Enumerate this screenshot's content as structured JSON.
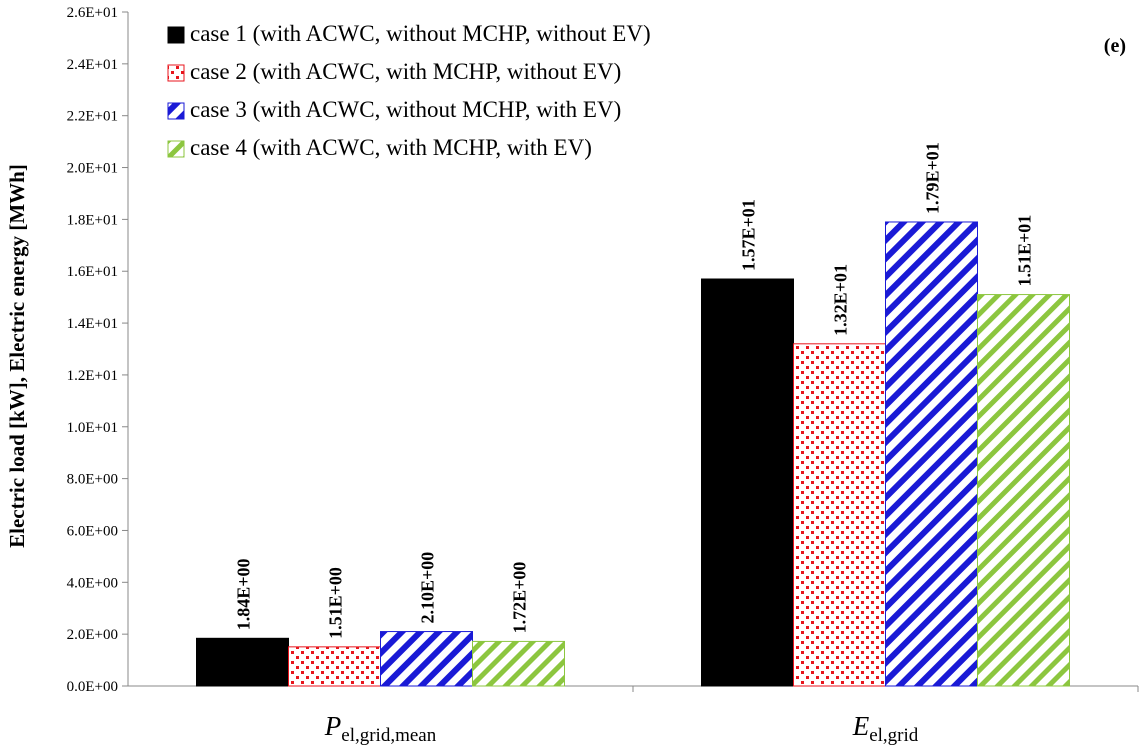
{
  "chart_data": {
    "type": "bar",
    "panel_label": "(e)",
    "ylabel": "Electric load [kW], Electric energy [MWh]",
    "ylim": [
      0,
      26
    ],
    "y_ticks": [
      0,
      2,
      4,
      6,
      8,
      10,
      12,
      14,
      16,
      18,
      20,
      22,
      24,
      26
    ],
    "y_tick_labels": [
      "0.0E+00",
      "2.0E+00",
      "4.0E+00",
      "6.0E+00",
      "8.0E+00",
      "1.0E+01",
      "1.2E+01",
      "1.4E+01",
      "1.6E+01",
      "1.8E+01",
      "2.0E+01",
      "2.2E+01",
      "2.4E+01",
      "2.6E+01"
    ],
    "grid": false,
    "legend_position": "top-left",
    "categories": [
      {
        "main": "P",
        "sub": "el,grid,mean"
      },
      {
        "main": "E",
        "sub": "el,grid"
      }
    ],
    "series": [
      {
        "name": "case 1 (with ACWC, without MCHP, without EV)",
        "values": [
          1.84,
          15.7
        ],
        "labels": [
          "1.84E+00",
          "1.57E+01"
        ],
        "color": "#000000",
        "pattern": "solid"
      },
      {
        "name": "case 2 (with ACWC, with MCHP, without  EV)",
        "values": [
          1.51,
          13.2
        ],
        "labels": [
          "1.51E+00",
          "1.32E+01"
        ],
        "color": "#e8141c",
        "pattern": "dots"
      },
      {
        "name": "case 3 (with ACWC, without MCHP, with EV)",
        "values": [
          2.1,
          17.9
        ],
        "labels": [
          "2.10E+00",
          "1.79E+01"
        ],
        "color": "#1a1ad6",
        "pattern": "diagonal"
      },
      {
        "name": "case 4 (with ACWC, with MCHP, with EV)",
        "values": [
          1.72,
          15.1
        ],
        "labels": [
          "1.72E+00",
          "1.51E+01"
        ],
        "color": "#8cc63f",
        "pattern": "diagonal-light"
      }
    ]
  }
}
